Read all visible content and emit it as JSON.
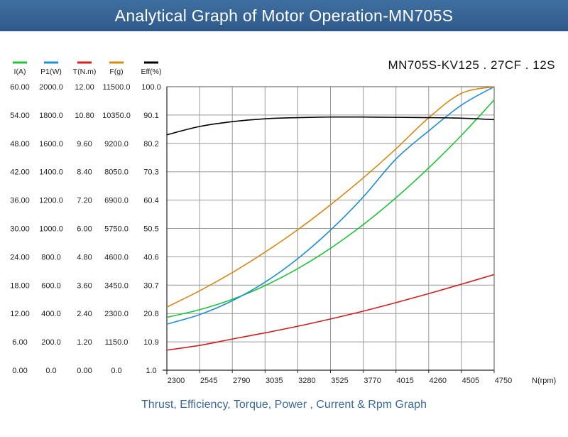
{
  "header": {
    "title": "Analytical Graph of Motor Operation-MN705S"
  },
  "model_label": "MN705S-KV125 . 27CF . 12S",
  "footer": {
    "caption": "Thrust, Efficiency, Torque, Power , Current & Rpm Graph"
  },
  "chart_data": {
    "type": "line",
    "title": "Analytical Graph of Motor Operation-MN705S",
    "xlabel": "N(rpm)",
    "x_ticks": [
      2300,
      2545,
      2790,
      3035,
      3280,
      3525,
      3770,
      4015,
      4260,
      4505,
      4750
    ],
    "xlim": [
      2300,
      4750
    ],
    "grid": true,
    "legend_position": "top-left",
    "axes": [
      {
        "id": "I",
        "label": "I(A)",
        "color": "#22c23a",
        "ylim": [
          0,
          60
        ],
        "ticks": [
          "0.00",
          "6.00",
          "12.00",
          "18.00",
          "24.00",
          "30.00",
          "36.00",
          "42.00",
          "48.00",
          "54.00",
          "60.00"
        ]
      },
      {
        "id": "P1",
        "label": "P1(W)",
        "color": "#1e8fd0",
        "ylim": [
          0,
          2000
        ],
        "ticks": [
          "0.0",
          "200.0",
          "400.0",
          "600.0",
          "800.0",
          "1000.0",
          "1200.0",
          "1400.0",
          "1600.0",
          "1800.0",
          "2000.0"
        ]
      },
      {
        "id": "T",
        "label": "T(N.m)",
        "color": "#d01f1f",
        "ylim": [
          0,
          12
        ],
        "ticks": [
          "0.00",
          "1.20",
          "2.40",
          "3.60",
          "4.80",
          "6.00",
          "7.20",
          "8.40",
          "9.60",
          "10.80",
          "12.00"
        ]
      },
      {
        "id": "F",
        "label": "F(g)",
        "color": "#d48a14",
        "ylim": [
          0,
          11500
        ],
        "ticks": [
          "0.0",
          "1150.0",
          "2300.0",
          "3450.0",
          "4600.0",
          "5750.0",
          "6900.0",
          "8050.0",
          "9200.0",
          "10350.0",
          "11500.0"
        ]
      },
      {
        "id": "Eff",
        "label": "Eff(%)",
        "color": "#000000",
        "ylim": [
          1,
          100
        ],
        "ticks": [
          "1.0",
          "10.9",
          "20.8",
          "30.7",
          "40.6",
          "50.5",
          "60.4",
          "70.3",
          "80.2",
          "90.1",
          "100.0"
        ]
      }
    ],
    "series": [
      {
        "axis": "I",
        "x": [
          2300,
          2545,
          2790,
          3035,
          3280,
          3525,
          3770,
          4015,
          4260,
          4505,
          4750
        ],
        "y": [
          11.2,
          12.8,
          15.0,
          17.9,
          21.5,
          25.8,
          30.8,
          36.5,
          42.8,
          49.7,
          57.2
        ]
      },
      {
        "axis": "P1",
        "x": [
          2300,
          2545,
          2790,
          3035,
          3280,
          3525,
          3770,
          4015,
          4260,
          4505,
          4750
        ],
        "y": [
          325,
          392,
          490,
          621,
          787,
          988,
          1222,
          1490,
          1688,
          1870,
          2000
        ]
      },
      {
        "axis": "T",
        "x": [
          2300,
          2545,
          2790,
          3035,
          3280,
          3525,
          3770,
          4015,
          4260,
          4505,
          4750
        ],
        "y": [
          0.85,
          1.05,
          1.32,
          1.58,
          1.86,
          2.17,
          2.5,
          2.86,
          3.24,
          3.64,
          4.05
        ]
      },
      {
        "axis": "F",
        "x": [
          2300,
          2545,
          2790,
          3035,
          3280,
          3525,
          3770,
          4015,
          4260,
          4505,
          4750
        ],
        "y": [
          2560,
          3220,
          3960,
          4790,
          5700,
          6710,
          7800,
          8980,
          10240,
          11230,
          11500
        ]
      },
      {
        "axis": "Eff",
        "x": [
          2300,
          2545,
          2790,
          3035,
          3280,
          3525,
          3770,
          4015,
          4260,
          4505,
          4750
        ],
        "y": [
          83.2,
          86.1,
          87.8,
          88.8,
          89.2,
          89.4,
          89.4,
          89.3,
          89.2,
          89.0,
          88.5
        ]
      }
    ]
  }
}
